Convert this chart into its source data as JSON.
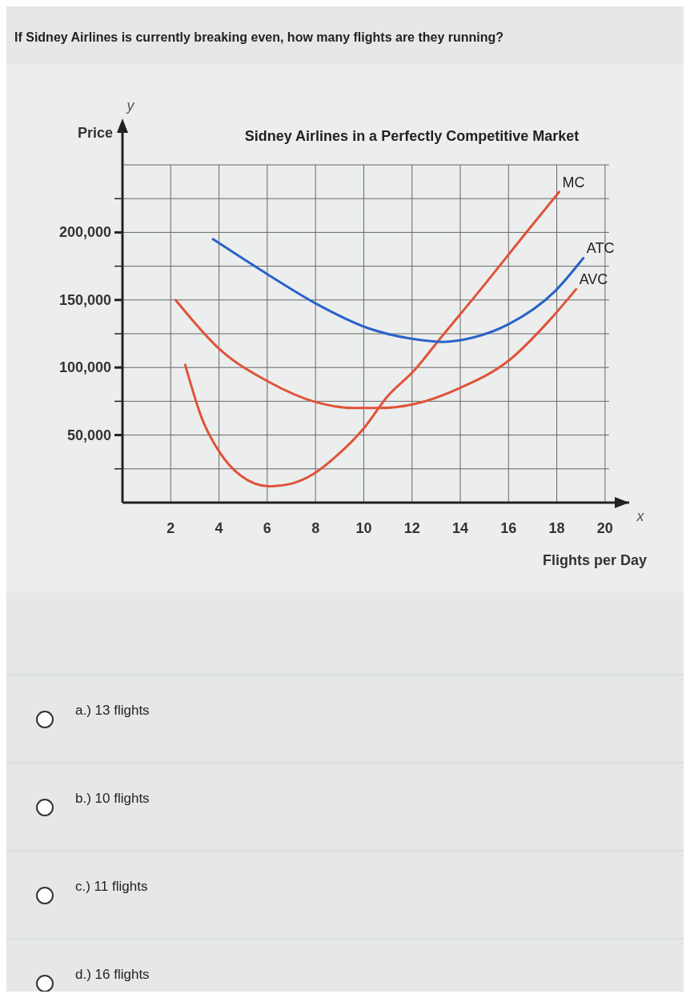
{
  "chart_data": {
    "type": "line",
    "title": "Sidney Airlines in a Perfectly Competitive Market",
    "xlabel": "Flights per Day",
    "ylabel": "Price",
    "annotations": [
      "If Sidney Airlines is currently breaking even, how many flights are they running?",
      "y",
      "x",
      "a.) 13 flights",
      "b.) 10 flights",
      "c.) 11 flights",
      "d.) 16 flights"
    ],
    "xlim": [
      0,
      21
    ],
    "xticks": [
      2,
      4,
      6,
      8,
      10,
      12,
      14,
      16,
      18,
      20
    ],
    "ylim": [
      0,
      250000
    ],
    "yticks": [
      {
        "value": 25000,
        "label": null
      },
      {
        "value": 50000,
        "label": "50,000"
      },
      {
        "value": 75000,
        "label": null
      },
      {
        "value": 100000,
        "label": "100,000"
      },
      {
        "value": 125000,
        "label": null
      },
      {
        "value": 150000,
        "label": "150,000"
      },
      {
        "value": 175000,
        "label": null
      },
      {
        "value": 200000,
        "label": "200,000"
      },
      {
        "value": 225000,
        "label": null
      }
    ],
    "grid": true,
    "marker": "none",
    "line_style": "solid",
    "series": [
      {
        "name": "MC",
        "color": "#e0533a",
        "x": [
          2.6,
          3.3,
          4.0,
          4.9,
          6.1,
          7.0,
          7.9,
          8.9,
          10.0,
          11.0,
          12.1,
          13.1,
          14.9,
          16.6,
          18.1
        ],
        "values": [
          102000,
          62000,
          38000,
          20000,
          12000,
          14000,
          21000,
          35000,
          55000,
          79000,
          98000,
          120000,
          159000,
          197000,
          230000
        ]
      },
      {
        "name": "ATC",
        "color": "#2a62c9",
        "x": [
          3.75,
          6.1,
          8.05,
          10.2,
          12.1,
          13.3,
          14.5,
          16.0,
          17.9,
          19.1
        ],
        "values": [
          195000,
          168000,
          147000,
          129000,
          121000,
          119000,
          122000,
          132000,
          156000,
          181000
        ]
      },
      {
        "name": "AVC",
        "color": "#e0533a",
        "x": [
          2.2,
          4.0,
          6.1,
          7.9,
          9.6,
          10.7,
          12.1,
          14.0,
          16.0,
          17.7,
          18.8
        ],
        "values": [
          150000,
          114000,
          89000,
          75000,
          70000,
          70000,
          73000,
          85000,
          105000,
          135000,
          158000
        ]
      }
    ]
  }
}
